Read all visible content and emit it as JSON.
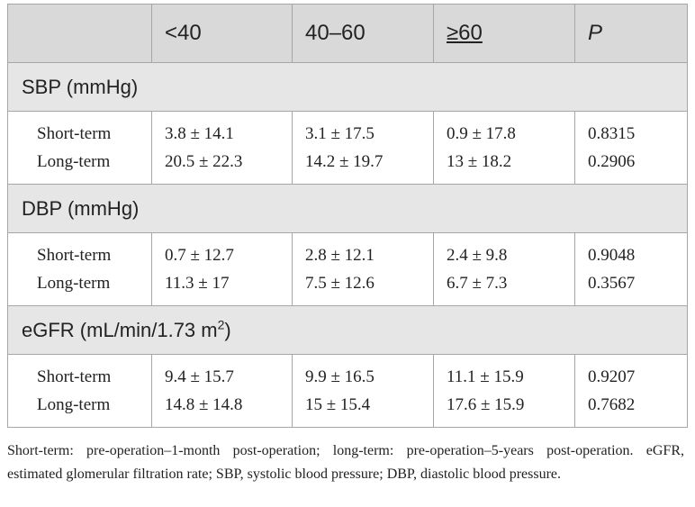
{
  "table": {
    "headers": [
      "",
      "<40",
      "40–60",
      "≥60",
      "P"
    ],
    "sections": [
      {
        "title": "SBP (mmHg)",
        "title_sup": "",
        "title_suffix": "",
        "rows": [
          {
            "label": "Short-term",
            "values": [
              "3.8 ± 14.1",
              "3.1 ± 17.5",
              "0.9 ± 17.8",
              "0.8315"
            ]
          },
          {
            "label": "Long-term",
            "values": [
              "20.5 ± 22.3",
              "14.2 ± 19.7",
              "13 ± 18.2",
              "0.2906"
            ]
          }
        ]
      },
      {
        "title": "DBP (mmHg)",
        "title_sup": "",
        "title_suffix": "",
        "rows": [
          {
            "label": "Short-term",
            "values": [
              "0.7 ± 12.7",
              "2.8 ± 12.1",
              "2.4 ± 9.8",
              "0.9048"
            ]
          },
          {
            "label": "Long-term",
            "values": [
              "11.3 ± 17",
              "7.5 ± 12.6",
              "6.7 ± 7.3",
              "0.3567"
            ]
          }
        ]
      },
      {
        "title": "eGFR (mL/min/1.73 m",
        "title_sup": "2",
        "title_suffix": ")",
        "rows": [
          {
            "label": "Short-term",
            "values": [
              "9.4 ± 15.7",
              "9.9 ± 16.5",
              "11.1 ± 15.9",
              "0.9207"
            ]
          },
          {
            "label": "Long-term",
            "values": [
              "14.8 ± 14.8",
              "15 ± 15.4",
              "17.6 ± 15.9",
              "0.7682"
            ]
          }
        ]
      }
    ]
  },
  "footnote": "Short-term: pre-operation–1-month post-operation; long-term: pre-operation–5-years post-operation. eGFR, estimated glomerular filtration rate; SBP, systolic blood pressure; DBP, diastolic blood pressure."
}
